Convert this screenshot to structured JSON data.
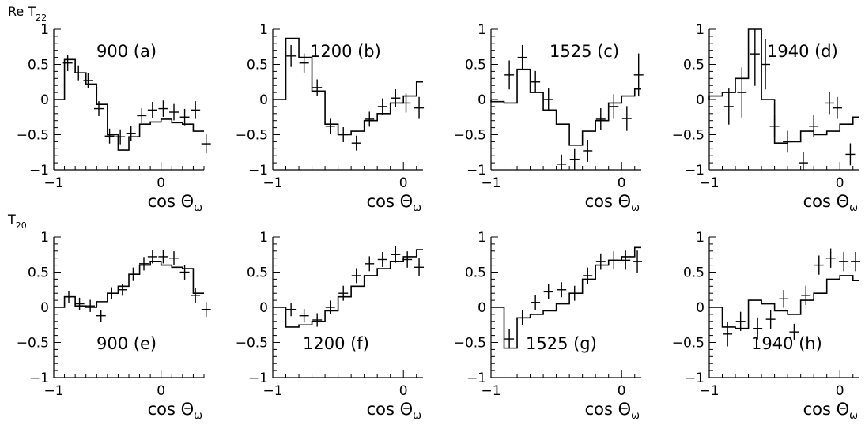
{
  "figure": {
    "row_labels": [
      "Re T",
      "T"
    ],
    "row_label_subscripts": [
      "22",
      "20"
    ],
    "xlabel": "cos Θ",
    "xlabel_subscript": "ω",
    "colors": {
      "axes": "#000000",
      "histogram": "#000000",
      "points": "#000000"
    }
  },
  "chart_data": [
    {
      "type": "line",
      "panel": "(a)",
      "energy": "900",
      "label": "900 (a)",
      "xlim": [
        -1,
        0.4
      ],
      "ylim": [
        -1,
        1
      ],
      "x_ticks": [
        -1,
        0
      ],
      "x_tick_labels": [
        "−1",
        "0"
      ],
      "y_ticks": [
        -1,
        -0.5,
        0,
        0.5,
        1
      ],
      "y_tick_labels": [
        "−1",
        "−0.5",
        "0",
        "0.5",
        "1"
      ],
      "xlabel": "cos Θω",
      "ylabel": "Re T22",
      "series": [
        {
          "kind": "histogram",
          "edges": [
            -1,
            -0.9,
            -0.8,
            -0.7,
            -0.6,
            -0.5,
            -0.4,
            -0.3,
            -0.2,
            -0.1,
            0,
            0.1,
            0.2,
            0.3,
            0.4
          ],
          "values": [
            0,
            0.57,
            0.38,
            0.22,
            -0.07,
            -0.5,
            -0.72,
            -0.53,
            -0.35,
            -0.32,
            -0.28,
            -0.33,
            -0.35,
            -0.45,
            -0.35
          ]
        },
        {
          "kind": "points",
          "x": [
            -0.87,
            -0.77,
            -0.68,
            -0.58,
            -0.48,
            -0.38,
            -0.28,
            -0.18,
            -0.08,
            0.02,
            0.12,
            0.22,
            0.32,
            0.42
          ],
          "y": [
            0.52,
            0.38,
            0.27,
            -0.13,
            -0.52,
            -0.53,
            -0.48,
            -0.23,
            -0.15,
            -0.13,
            -0.18,
            -0.25,
            -0.15,
            -0.63
          ],
          "yerr": [
            0.06,
            0.05,
            0.05,
            0.05,
            0.05,
            0.05,
            0.05,
            0.05,
            0.06,
            0.06,
            0.06,
            0.06,
            0.07,
            0.08
          ]
        }
      ]
    },
    {
      "type": "line",
      "panel": "(b)",
      "energy": "1200",
      "label": "1200 (b)",
      "xlim": [
        -1,
        0.15
      ],
      "ylim": [
        -1,
        1
      ],
      "x_ticks": [
        -1,
        0
      ],
      "x_tick_labels": [
        "−1",
        "0"
      ],
      "y_ticks": [
        -1,
        -0.5,
        0,
        0.5,
        1
      ],
      "y_tick_labels": [
        "−1",
        "−0.5",
        "0",
        "0.5",
        "1"
      ],
      "xlabel": "cos Θω",
      "ylabel": "Re T22",
      "series": [
        {
          "kind": "histogram",
          "edges": [
            -1,
            -0.9,
            -0.8,
            -0.7,
            -0.6,
            -0.5,
            -0.4,
            -0.3,
            -0.2,
            -0.1,
            0,
            0.1,
            0.15
          ],
          "values": [
            0,
            0.87,
            0.6,
            0.12,
            -0.35,
            -0.5,
            -0.45,
            -0.3,
            -0.2,
            -0.05,
            0.05,
            0.25,
            0.25
          ]
        },
        {
          "kind": "points",
          "x": [
            -0.86,
            -0.76,
            -0.66,
            -0.56,
            -0.46,
            -0.36,
            -0.26,
            -0.16,
            -0.06,
            0.02,
            0.12
          ],
          "y": [
            0.62,
            0.52,
            0.17,
            -0.38,
            -0.5,
            -0.62,
            -0.28,
            -0.1,
            0.02,
            -0.05,
            -0.12
          ],
          "yerr": [
            0.1,
            0.08,
            0.06,
            0.05,
            0.05,
            0.05,
            0.05,
            0.06,
            0.07,
            0.08,
            0.1
          ]
        }
      ]
    },
    {
      "type": "line",
      "panel": "(c)",
      "energy": "1525",
      "label": "1525 (c)",
      "xlim": [
        -1,
        0.15
      ],
      "ylim": [
        -1,
        1
      ],
      "x_ticks": [
        -1,
        0
      ],
      "x_tick_labels": [
        "−1",
        "0"
      ],
      "y_ticks": [
        -1,
        -0.5,
        0,
        0.5,
        1
      ],
      "y_tick_labels": [
        "−1",
        "−0.5",
        "0",
        "0.5",
        "1"
      ],
      "xlabel": "cos Θω",
      "ylabel": "Re T22",
      "series": [
        {
          "kind": "histogram",
          "edges": [
            -1,
            -0.9,
            -0.8,
            -0.7,
            -0.6,
            -0.5,
            -0.4,
            -0.3,
            -0.2,
            -0.1,
            0,
            0.1,
            0.15
          ],
          "values": [
            -0.03,
            -0.05,
            0.43,
            0.1,
            -0.15,
            -0.35,
            -0.65,
            -0.45,
            -0.3,
            -0.05,
            0.05,
            0.15,
            0.15
          ]
        },
        {
          "kind": "points",
          "x": [
            -0.86,
            -0.76,
            -0.66,
            -0.56,
            -0.46,
            -0.36,
            -0.26,
            -0.16,
            -0.06,
            0.04,
            0.13
          ],
          "y": [
            0.35,
            0.6,
            0.25,
            0.0,
            -0.92,
            -0.85,
            -0.73,
            -0.28,
            -0.1,
            -0.27,
            0.35
          ],
          "yerr": [
            0.15,
            0.12,
            0.1,
            0.1,
            0.08,
            0.1,
            0.1,
            0.1,
            0.12,
            0.12,
            0.25
          ]
        }
      ]
    },
    {
      "type": "line",
      "panel": "(d)",
      "energy": "1940",
      "label": "1940 (d)",
      "xlim": [
        -1,
        0.15
      ],
      "ylim": [
        -1,
        1
      ],
      "x_ticks": [
        -1,
        0
      ],
      "x_tick_labels": [
        "−1",
        "0"
      ],
      "y_ticks": [
        -1,
        -0.5,
        0,
        0.5,
        1
      ],
      "y_tick_labels": [
        "−1",
        "−0.5",
        "0",
        "0.5",
        "1"
      ],
      "xlabel": "cos Θω",
      "ylabel": "Re T22",
      "series": [
        {
          "kind": "histogram",
          "edges": [
            -1,
            -0.9,
            -0.8,
            -0.7,
            -0.6,
            -0.5,
            -0.4,
            -0.3,
            -0.2,
            -0.1,
            0,
            0.1,
            0.15
          ],
          "values": [
            0.05,
            0.1,
            0.3,
            1.0,
            0.0,
            -0.62,
            -0.6,
            -0.45,
            -0.5,
            -0.45,
            -0.35,
            -0.25,
            -0.25
          ]
        },
        {
          "kind": "points",
          "x": [
            -0.85,
            -0.75,
            -0.65,
            -0.57,
            -0.5,
            -0.4,
            -0.28,
            -0.2,
            -0.08,
            -0.02,
            0.08
          ],
          "y": [
            -0.1,
            0.1,
            0.65,
            0.5,
            -0.38,
            -0.6,
            -0.9,
            -0.38,
            -0.05,
            -0.12,
            -0.78
          ],
          "yerr": [
            0.2,
            0.3,
            0.4,
            0.3,
            0.1,
            0.1,
            0.1,
            0.1,
            0.1,
            0.1,
            0.1
          ]
        }
      ]
    },
    {
      "type": "line",
      "panel": "(e)",
      "energy": "900",
      "label": "900 (e)",
      "xlim": [
        -1,
        0.4
      ],
      "ylim": [
        -1,
        1
      ],
      "x_ticks": [
        -1,
        0
      ],
      "x_tick_labels": [
        "−1",
        "0"
      ],
      "y_ticks": [
        -1,
        -0.5,
        0,
        0.5,
        1
      ],
      "y_tick_labels": [
        "−1",
        "−0.5",
        "0",
        "0.5",
        "1"
      ],
      "xlabel": "cos Θω",
      "ylabel": "T20",
      "series": [
        {
          "kind": "histogram",
          "edges": [
            -1,
            -0.9,
            -0.8,
            -0.7,
            -0.6,
            -0.5,
            -0.4,
            -0.3,
            -0.2,
            -0.1,
            0,
            0.1,
            0.2,
            0.3,
            0.4
          ],
          "values": [
            0,
            0.15,
            0.02,
            0.0,
            0.08,
            0.2,
            0.3,
            0.47,
            0.6,
            0.65,
            0.6,
            0.57,
            0.55,
            0.2,
            0.2
          ]
        },
        {
          "kind": "points",
          "x": [
            -0.86,
            -0.76,
            -0.66,
            -0.56,
            -0.46,
            -0.36,
            -0.26,
            -0.16,
            -0.08,
            0.02,
            0.12,
            0.22,
            0.32,
            0.42
          ],
          "y": [
            0.15,
            0.05,
            0.02,
            -0.12,
            0.2,
            0.25,
            0.47,
            0.62,
            0.72,
            0.72,
            0.7,
            0.5,
            0.17,
            -0.03
          ],
          "yerr": [
            0.03,
            0.03,
            0.03,
            0.03,
            0.03,
            0.03,
            0.04,
            0.04,
            0.04,
            0.04,
            0.04,
            0.05,
            0.05,
            0.05
          ]
        }
      ]
    },
    {
      "type": "line",
      "panel": "(f)",
      "energy": "1200",
      "label": "1200 (f)",
      "xlim": [
        -1,
        0.15
      ],
      "ylim": [
        -1,
        1
      ],
      "x_ticks": [
        -1,
        0
      ],
      "x_tick_labels": [
        "−1",
        "0"
      ],
      "y_ticks": [
        -1,
        -0.5,
        0,
        0.5,
        1
      ],
      "y_tick_labels": [
        "−1",
        "−0.5",
        "0",
        "0.5",
        "1"
      ],
      "xlabel": "cos Θω",
      "ylabel": "T20",
      "series": [
        {
          "kind": "histogram",
          "edges": [
            -1,
            -0.9,
            -0.8,
            -0.7,
            -0.6,
            -0.5,
            -0.4,
            -0.3,
            -0.2,
            -0.1,
            0,
            0.1,
            0.15
          ],
          "values": [
            0,
            -0.28,
            -0.25,
            -0.2,
            -0.05,
            0.15,
            0.3,
            0.45,
            0.55,
            0.65,
            0.72,
            0.82,
            0.82
          ]
        },
        {
          "kind": "points",
          "x": [
            -0.86,
            -0.76,
            -0.66,
            -0.56,
            -0.46,
            -0.36,
            -0.26,
            -0.16,
            -0.06,
            0.03,
            0.12
          ],
          "y": [
            -0.03,
            -0.12,
            -0.18,
            0.0,
            0.2,
            0.45,
            0.62,
            0.68,
            0.75,
            0.68,
            0.57
          ],
          "yerr": [
            0.04,
            0.04,
            0.04,
            0.04,
            0.05,
            0.05,
            0.05,
            0.05,
            0.06,
            0.06,
            0.07
          ]
        }
      ]
    },
    {
      "type": "line",
      "panel": "(g)",
      "energy": "1525",
      "label": "1525 (g)",
      "xlim": [
        -1,
        0.15
      ],
      "ylim": [
        -1,
        1
      ],
      "x_ticks": [
        -1,
        0
      ],
      "x_tick_labels": [
        "−1",
        "0"
      ],
      "y_ticks": [
        -1,
        -0.5,
        0,
        0.5,
        1
      ],
      "y_tick_labels": [
        "−1",
        "−0.5",
        "0",
        "0.5",
        "1"
      ],
      "xlabel": "cos Θω",
      "ylabel": "T20",
      "series": [
        {
          "kind": "histogram",
          "edges": [
            -1,
            -0.9,
            -0.8,
            -0.7,
            -0.6,
            -0.5,
            -0.4,
            -0.3,
            -0.2,
            -0.1,
            0,
            0.1,
            0.15
          ],
          "values": [
            0,
            -0.58,
            -0.15,
            -0.1,
            -0.05,
            0.05,
            0.2,
            0.4,
            0.6,
            0.67,
            0.72,
            0.85,
            0.85
          ]
        },
        {
          "kind": "points",
          "x": [
            -0.86,
            -0.76,
            -0.66,
            -0.56,
            -0.46,
            -0.36,
            -0.26,
            -0.16,
            -0.06,
            0.03,
            0.12
          ],
          "y": [
            -0.45,
            -0.15,
            0.07,
            0.22,
            0.25,
            0.2,
            0.45,
            0.65,
            0.67,
            0.67,
            0.65
          ],
          "yerr": [
            0.08,
            0.05,
            0.05,
            0.05,
            0.05,
            0.05,
            0.06,
            0.06,
            0.07,
            0.08,
            0.1
          ]
        }
      ]
    },
    {
      "type": "line",
      "panel": "(h)",
      "energy": "1940",
      "label": "1940 (h)",
      "xlim": [
        -1,
        0.15
      ],
      "ylim": [
        -1,
        1
      ],
      "x_ticks": [
        -1,
        0
      ],
      "x_tick_labels": [
        "−1",
        "0"
      ],
      "y_ticks": [
        -1,
        -0.5,
        0,
        0.5,
        1
      ],
      "y_tick_labels": [
        "−1",
        "−0.5",
        "0",
        "0.5",
        "1"
      ],
      "xlabel": "cos Θω",
      "ylabel": "T20",
      "series": [
        {
          "kind": "histogram",
          "edges": [
            -1,
            -0.9,
            -0.8,
            -0.7,
            -0.6,
            -0.5,
            -0.4,
            -0.3,
            -0.2,
            -0.1,
            0,
            0.1,
            0.15
          ],
          "values": [
            0,
            -0.28,
            -0.3,
            0.1,
            0.05,
            -0.05,
            -0.1,
            0.1,
            0.2,
            0.4,
            0.45,
            0.38,
            0.38
          ]
        },
        {
          "kind": "points",
          "x": [
            -0.86,
            -0.76,
            -0.63,
            -0.53,
            -0.43,
            -0.35,
            -0.26,
            -0.16,
            -0.07,
            0.03,
            0.12
          ],
          "y": [
            -0.38,
            -0.2,
            -0.3,
            -0.17,
            0.12,
            -0.35,
            0.17,
            0.6,
            0.7,
            0.65,
            0.65
          ],
          "yerr": [
            0.12,
            0.08,
            0.1,
            0.08,
            0.07,
            0.06,
            0.08,
            0.08,
            0.08,
            0.08,
            0.08
          ]
        }
      ]
    }
  ]
}
